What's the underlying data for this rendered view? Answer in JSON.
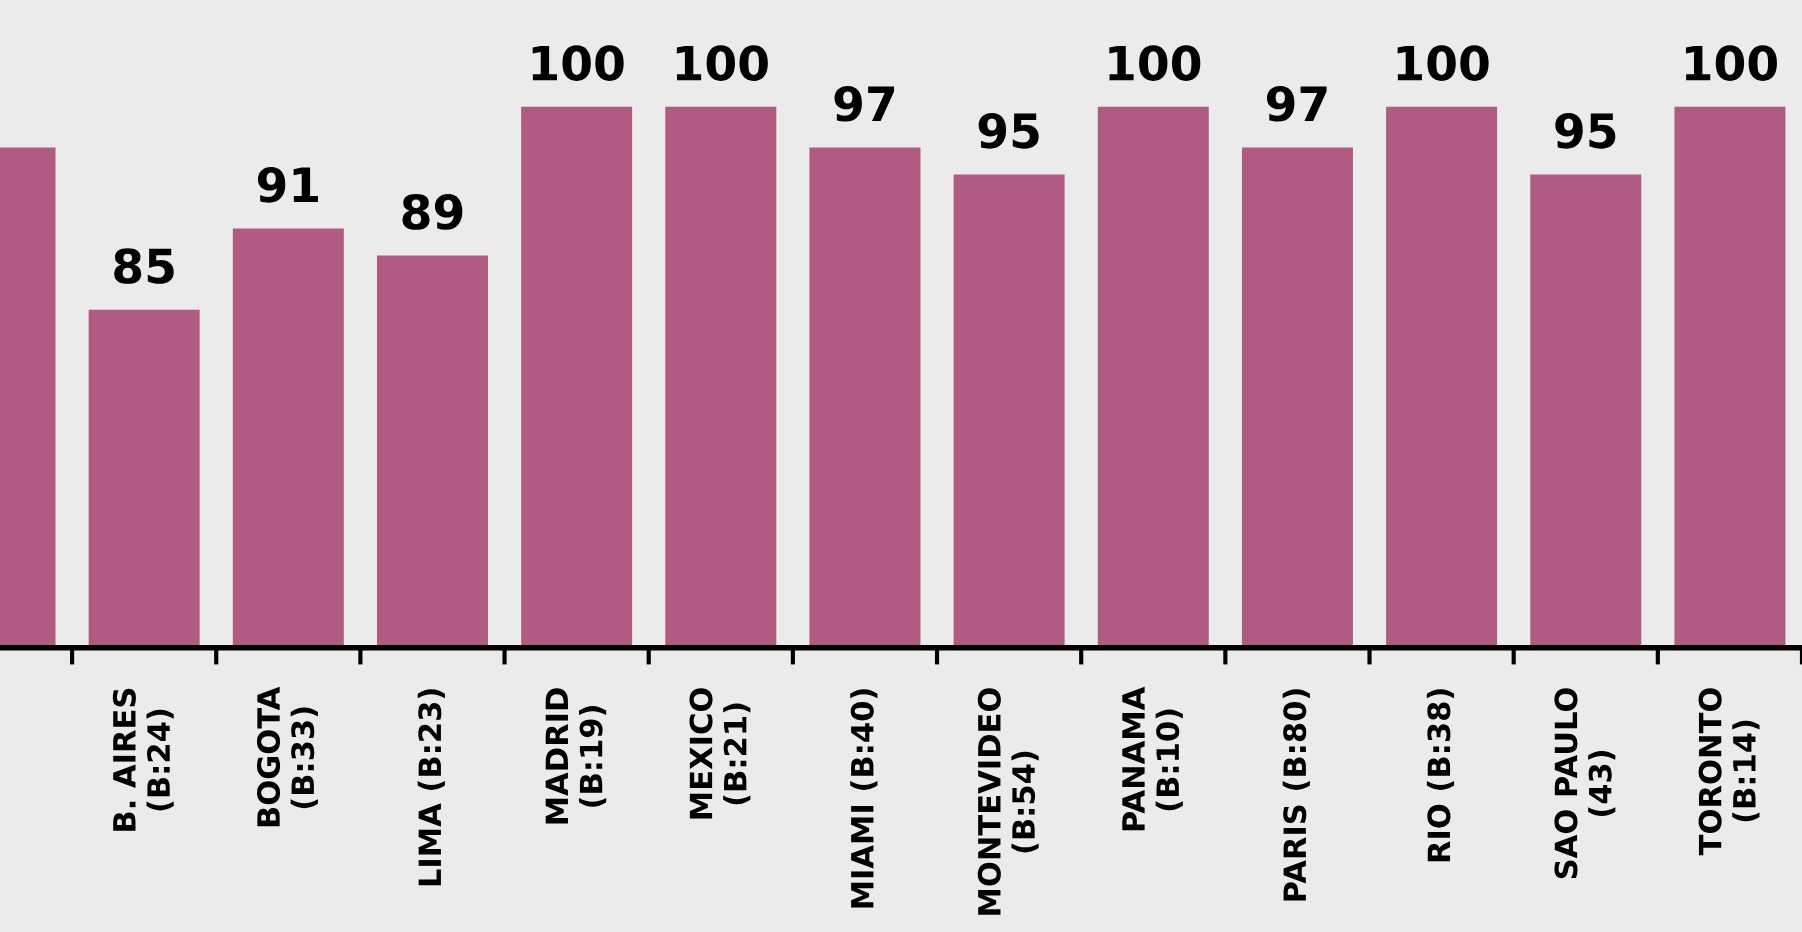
{
  "chart_data": {
    "type": "bar",
    "categories": [
      null,
      "B. AIRES\n(B:24)",
      "BOGOTA\n(B:33)",
      "LIMA (B:23)",
      "MADRID\n(B:19)",
      "MEXICO\n(B:21)",
      "MIAMI (B:40)",
      "MONTEVIDEO\n(B:54)",
      "PANAMA\n(B:10)",
      "PARIS (B:80)",
      "RIO (B:38)",
      "SAO PAULO\n(43)",
      "TORONTO\n(B:14)"
    ],
    "values": [
      97,
      85,
      91,
      89,
      100,
      100,
      97,
      95,
      100,
      97,
      100,
      95,
      100
    ],
    "value_labels": [
      null,
      "85",
      "91",
      "89",
      "100",
      "100",
      "97",
      "95",
      "100",
      "97",
      "100",
      "95",
      "100"
    ],
    "color": "#b05a84",
    "ylim": [
      60,
      107.9
    ],
    "tick_labels": "x",
    "grid": false,
    "legend": false
  }
}
